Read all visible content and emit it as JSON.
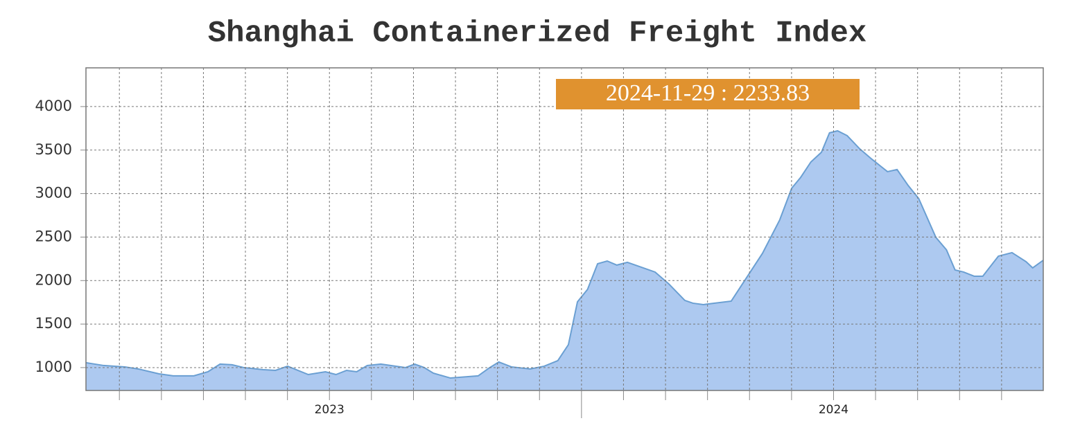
{
  "chart_data": {
    "type": "area",
    "title": "Shanghai Containerized Freight Index",
    "annotation": "2024-11-29 : 2233.83",
    "color": "#6a9fd2",
    "fill": "#adc9f0",
    "x": [
      2023.017,
      2023.052,
      2023.094,
      2023.121,
      2023.162,
      2023.19,
      2023.231,
      2023.259,
      2023.283,
      2023.307,
      2023.33,
      2023.369,
      2023.393,
      2023.417,
      2023.458,
      2023.492,
      2023.513,
      2023.534,
      2023.554,
      2023.575,
      2023.602,
      2023.651,
      2023.669,
      2023.688,
      2023.706,
      2023.74,
      2023.795,
      2023.816,
      2023.836,
      2023.861,
      2023.898,
      2023.926,
      2023.953,
      2023.974,
      2023.992,
      2024.012,
      2024.032,
      2024.051,
      2024.07,
      2024.091,
      2024.146,
      2024.173,
      2024.205,
      2024.221,
      2024.242,
      2024.263,
      2024.297,
      2024.359,
      2024.393,
      2024.417,
      2024.435,
      2024.455,
      2024.476,
      2024.492,
      2024.508,
      2024.527,
      2024.552,
      2024.576,
      2024.607,
      2024.626,
      2024.648,
      2024.669,
      2024.703,
      2024.724,
      2024.741,
      2024.758,
      2024.779,
      2024.796,
      2024.827,
      2024.854,
      2024.882,
      2024.895,
      2024.916
    ],
    "values": [
      1056,
      1024,
      1008,
      984,
      928,
      905,
      905,
      952,
      1040,
      1032,
      1000,
      976,
      968,
      1016,
      920,
      952,
      920,
      968,
      952,
      1024,
      1040,
      1000,
      1040,
      1000,
      936,
      880,
      905,
      992,
      1064,
      1008,
      984,
      1016,
      1080,
      1263,
      1756,
      1899,
      2194,
      2225,
      2178,
      2210,
      2098,
      1963,
      1772,
      1740,
      1724,
      1740,
      1764,
      2313,
      2695,
      3061,
      3188,
      3363,
      3475,
      3698,
      3721,
      3666,
      3514,
      3395,
      3252,
      3276,
      3093,
      2942,
      2496,
      2353,
      2122,
      2098,
      2050,
      2050,
      2281,
      2321,
      2217,
      2146,
      2233.83
    ],
    "xlim": [
      2023.017,
      2024.916
    ],
    "ylim": [
      737,
      4445
    ],
    "yticks": [
      1000,
      1500,
      2000,
      2500,
      3000,
      3500,
      4000
    ],
    "xticks": [
      {
        "value": 2023.5,
        "label": "2023"
      },
      {
        "value": 2024.5,
        "label": "2024"
      }
    ],
    "xgrid": [
      2023.0833,
      2023.1667,
      2023.25,
      2023.3333,
      2023.4167,
      2023.5,
      2023.5833,
      2023.6667,
      2023.75,
      2023.8333,
      2023.9167,
      2024,
      2024.0833,
      2024.1667,
      2024.25,
      2024.3333,
      2024.4167,
      2024.5,
      2024.5833,
      2024.6667,
      2024.75,
      2024.8333
    ],
    "grid": true
  }
}
